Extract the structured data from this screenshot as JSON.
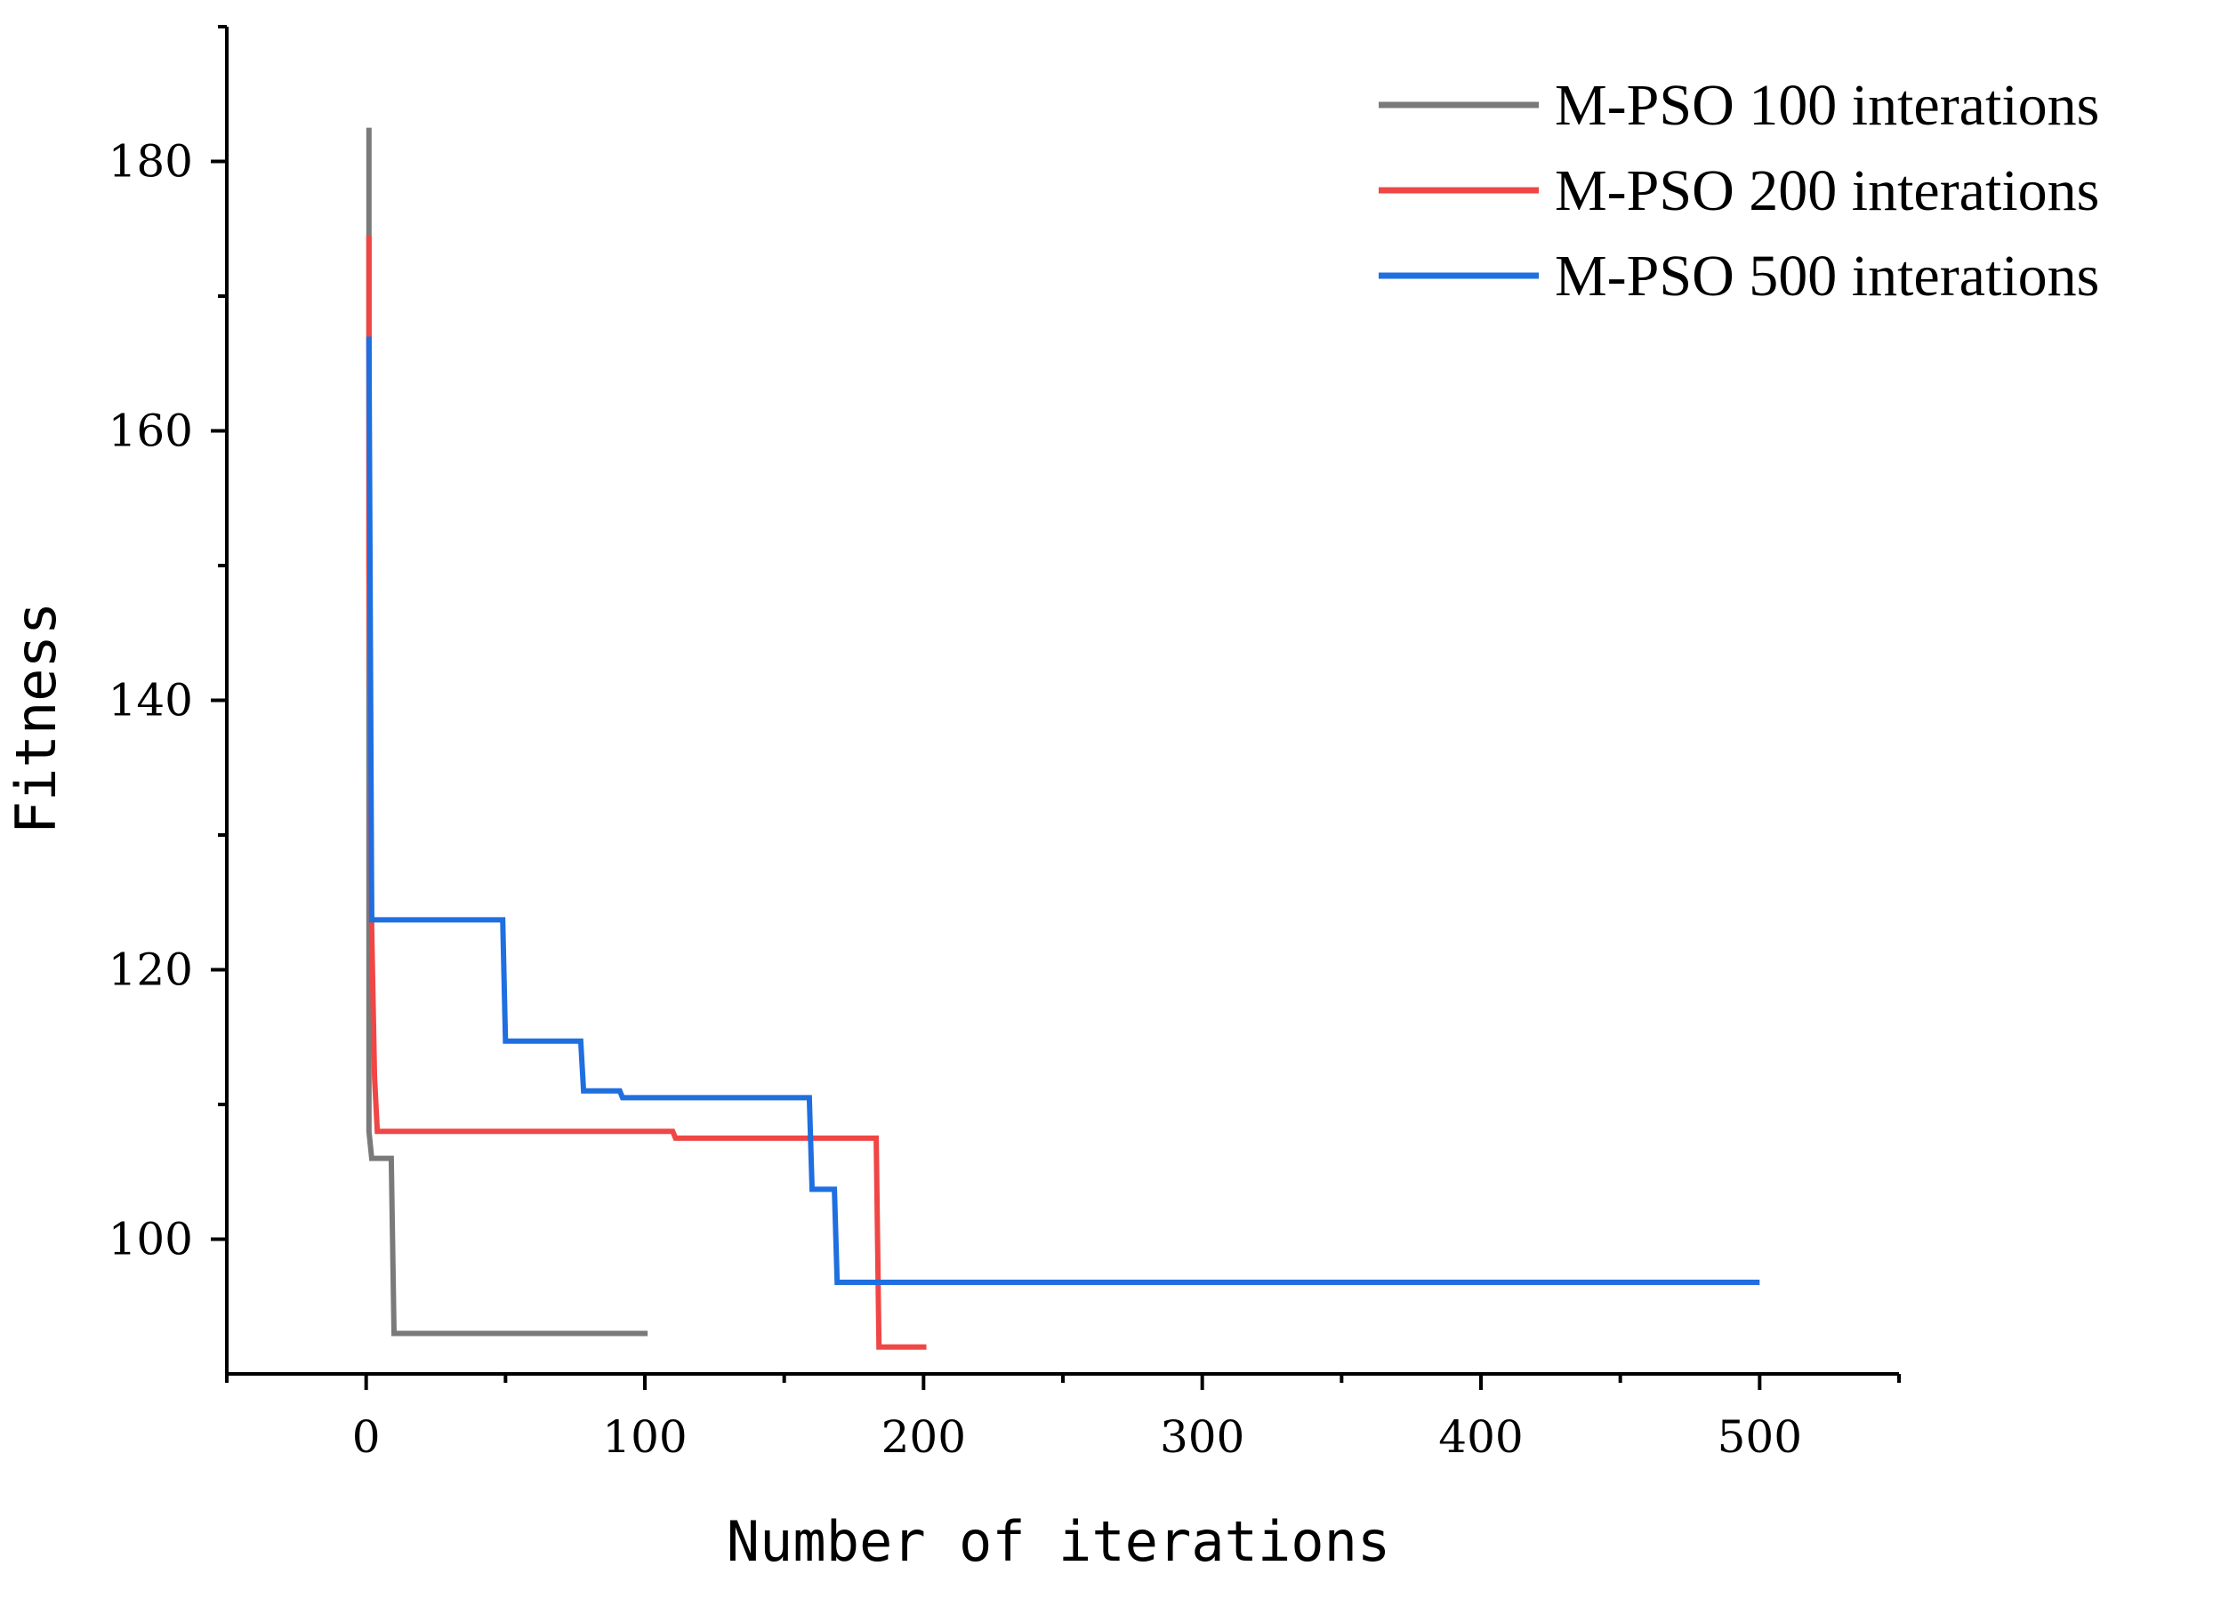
{
  "chart_data": {
    "type": "line",
    "title": "",
    "xlabel": "Number of iterations",
    "ylabel": "Fitness",
    "xlim": [
      -50,
      550
    ],
    "ylim": [
      90,
      190
    ],
    "xticks": [
      0,
      100,
      200,
      300,
      400,
      500
    ],
    "xtick_labels": [
      "0",
      "100",
      "200",
      "300",
      "400",
      "500"
    ],
    "yticks": [
      100,
      120,
      140,
      160,
      180
    ],
    "ytick_labels": [
      "100",
      "120",
      "140",
      "160",
      "180"
    ],
    "x_minor_ticks": [
      -50,
      50,
      150,
      250,
      350,
      450,
      550
    ],
    "y_minor_ticks": [
      110,
      130,
      150,
      170,
      190
    ],
    "grid": false,
    "legend_position": "top-right",
    "series": [
      {
        "name": "M-PSO 100 interations",
        "color": "#7a7a7a",
        "points": [
          [
            1,
            182.5
          ],
          [
            1,
            108
          ],
          [
            2,
            106
          ],
          [
            9,
            106
          ],
          [
            10,
            93
          ],
          [
            101,
            93
          ]
        ]
      },
      {
        "name": "M-PSO 200 interations",
        "color": "#f04646",
        "points": [
          [
            1,
            174.5
          ],
          [
            1,
            150
          ],
          [
            2,
            123
          ],
          [
            3,
            112
          ],
          [
            4,
            108
          ],
          [
            110,
            108
          ],
          [
            111,
            107.5
          ],
          [
            183,
            107.5
          ],
          [
            184,
            92
          ],
          [
            201,
            92
          ]
        ]
      },
      {
        "name": "M-PSO 500 interations",
        "color": "#1f6fe0",
        "points": [
          [
            1,
            167
          ],
          [
            2,
            123.7
          ],
          [
            49,
            123.7
          ],
          [
            50,
            114.7
          ],
          [
            77,
            114.7
          ],
          [
            78,
            111
          ],
          [
            91,
            111
          ],
          [
            92,
            110.5
          ],
          [
            159,
            110.5
          ],
          [
            160,
            103.7
          ],
          [
            168,
            103.7
          ],
          [
            169,
            96.8
          ],
          [
            500,
            96.8
          ]
        ]
      }
    ]
  }
}
